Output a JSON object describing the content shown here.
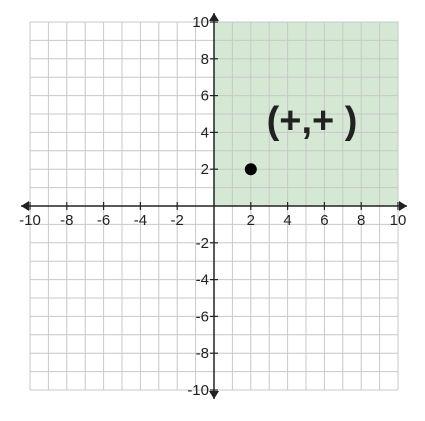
{
  "plane": {
    "x_range": [
      -10,
      10
    ],
    "y_range": [
      -10,
      10
    ],
    "grid_step": 1,
    "label_step": 2,
    "x_tick_labels": [
      "-10",
      "-8",
      "-6",
      "-4",
      "-2",
      "2",
      "4",
      "6",
      "8",
      "10"
    ],
    "y_tick_labels": [
      "10",
      "8",
      "6",
      "4",
      "2",
      "-2",
      "-4",
      "-6",
      "-8",
      "-10"
    ],
    "colors": {
      "grid": "#c8c8c8",
      "axis": "#222222",
      "shaded_region": "#d5e8d4",
      "shaded_border": "#82a07a",
      "point": "#000000"
    }
  },
  "shaded_quadrant": {
    "x_range": [
      0,
      10
    ],
    "y_range": [
      0,
      10
    ],
    "label": "(+,+ )"
  },
  "point": {
    "x": 2,
    "y": 2
  }
}
